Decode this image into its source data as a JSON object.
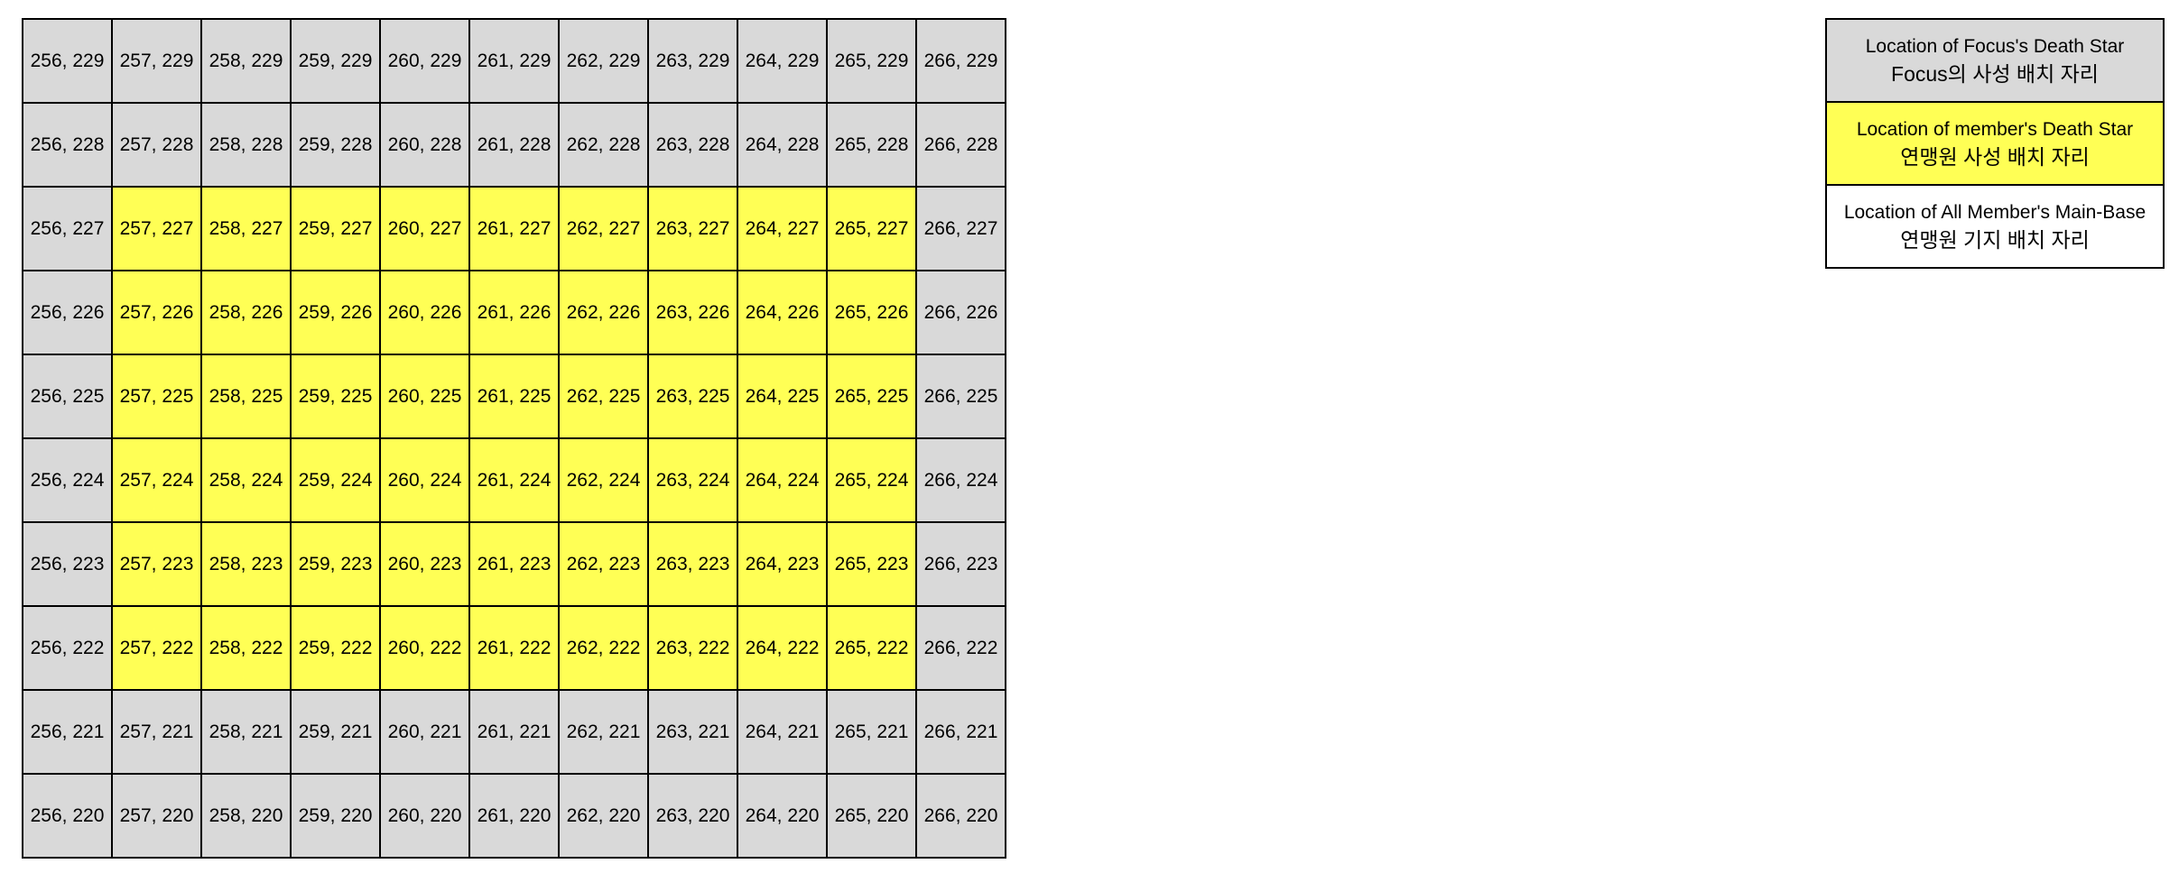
{
  "colors": {
    "focus_death_star": "#d9d9d9",
    "member_death_star": "#ffff55",
    "member_main_base": "#ffffff",
    "border": "#000000"
  },
  "grid": {
    "columns": [
      256,
      257,
      258,
      259,
      260,
      261,
      262,
      263,
      264,
      265,
      266
    ],
    "rows": [
      229,
      228,
      227,
      226,
      225,
      224,
      223,
      222,
      221,
      220
    ],
    "member_death_star_zone": {
      "x_min": 257,
      "x_max": 265,
      "y_min": 222,
      "y_max": 227
    }
  },
  "legend": [
    {
      "kind": "focus_death_star",
      "line1": "Location of Focus's Death Star",
      "line2": "Focus의 사성 배치 자리"
    },
    {
      "kind": "member_death_star",
      "line1": "Location of member's Death Star",
      "line2": "연맹원 사성 배치 자리"
    },
    {
      "kind": "member_main_base",
      "line1": "Location of All Member's Main-Base",
      "line2": "연맹원 기지 배치 자리"
    }
  ]
}
